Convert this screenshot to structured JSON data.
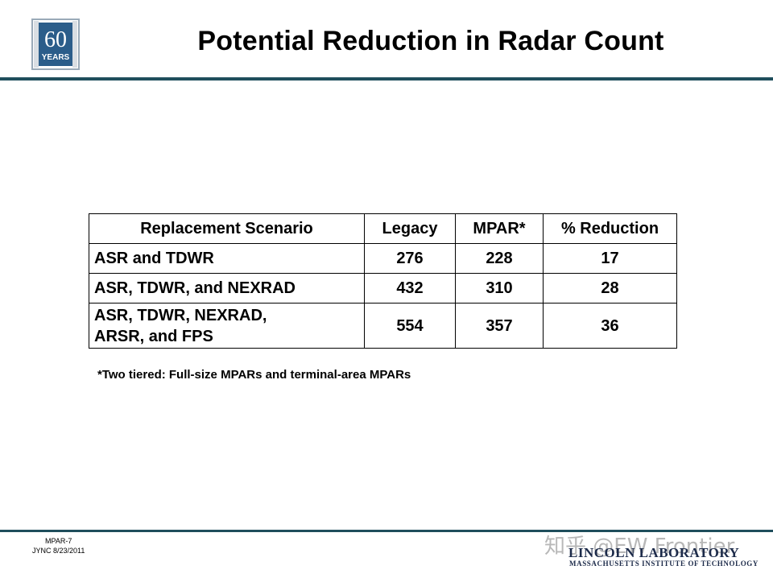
{
  "header": {
    "logo_number": "60",
    "logo_word": "YEARS",
    "title": "Potential Reduction in Radar Count"
  },
  "table": {
    "headers": [
      "Replacement Scenario",
      "Legacy",
      "MPAR*",
      "% Reduction"
    ],
    "rows": [
      {
        "scenario": "ASR and TDWR",
        "legacy": "276",
        "mpar": "228",
        "reduction": "17"
      },
      {
        "scenario": "ASR, TDWR, and NEXRAD",
        "legacy": "432",
        "mpar": "310",
        "reduction": "28"
      },
      {
        "scenario_line1": "ASR, TDWR, NEXRAD,",
        "scenario_line2": "ARSR, and FPS",
        "legacy": "554",
        "mpar": "357",
        "reduction": "36"
      }
    ]
  },
  "footnote": "*Two tiered: Full-size MPARs and terminal-area MPARs",
  "footer": {
    "slide_id": "MPAR-7",
    "author_date": "JYNC 8/23/2011",
    "lab_name": "LINCOLN LABORATORY",
    "lab_subtitle": "MASSACHUSETTS INSTITUTE OF TECHNOLOGY",
    "watermark": "知乎 @EW Frontier"
  },
  "colors": {
    "rule": "#1f4e5c",
    "logo_blue": "#2b5d8a",
    "lab_text": "#1d2b4a"
  }
}
